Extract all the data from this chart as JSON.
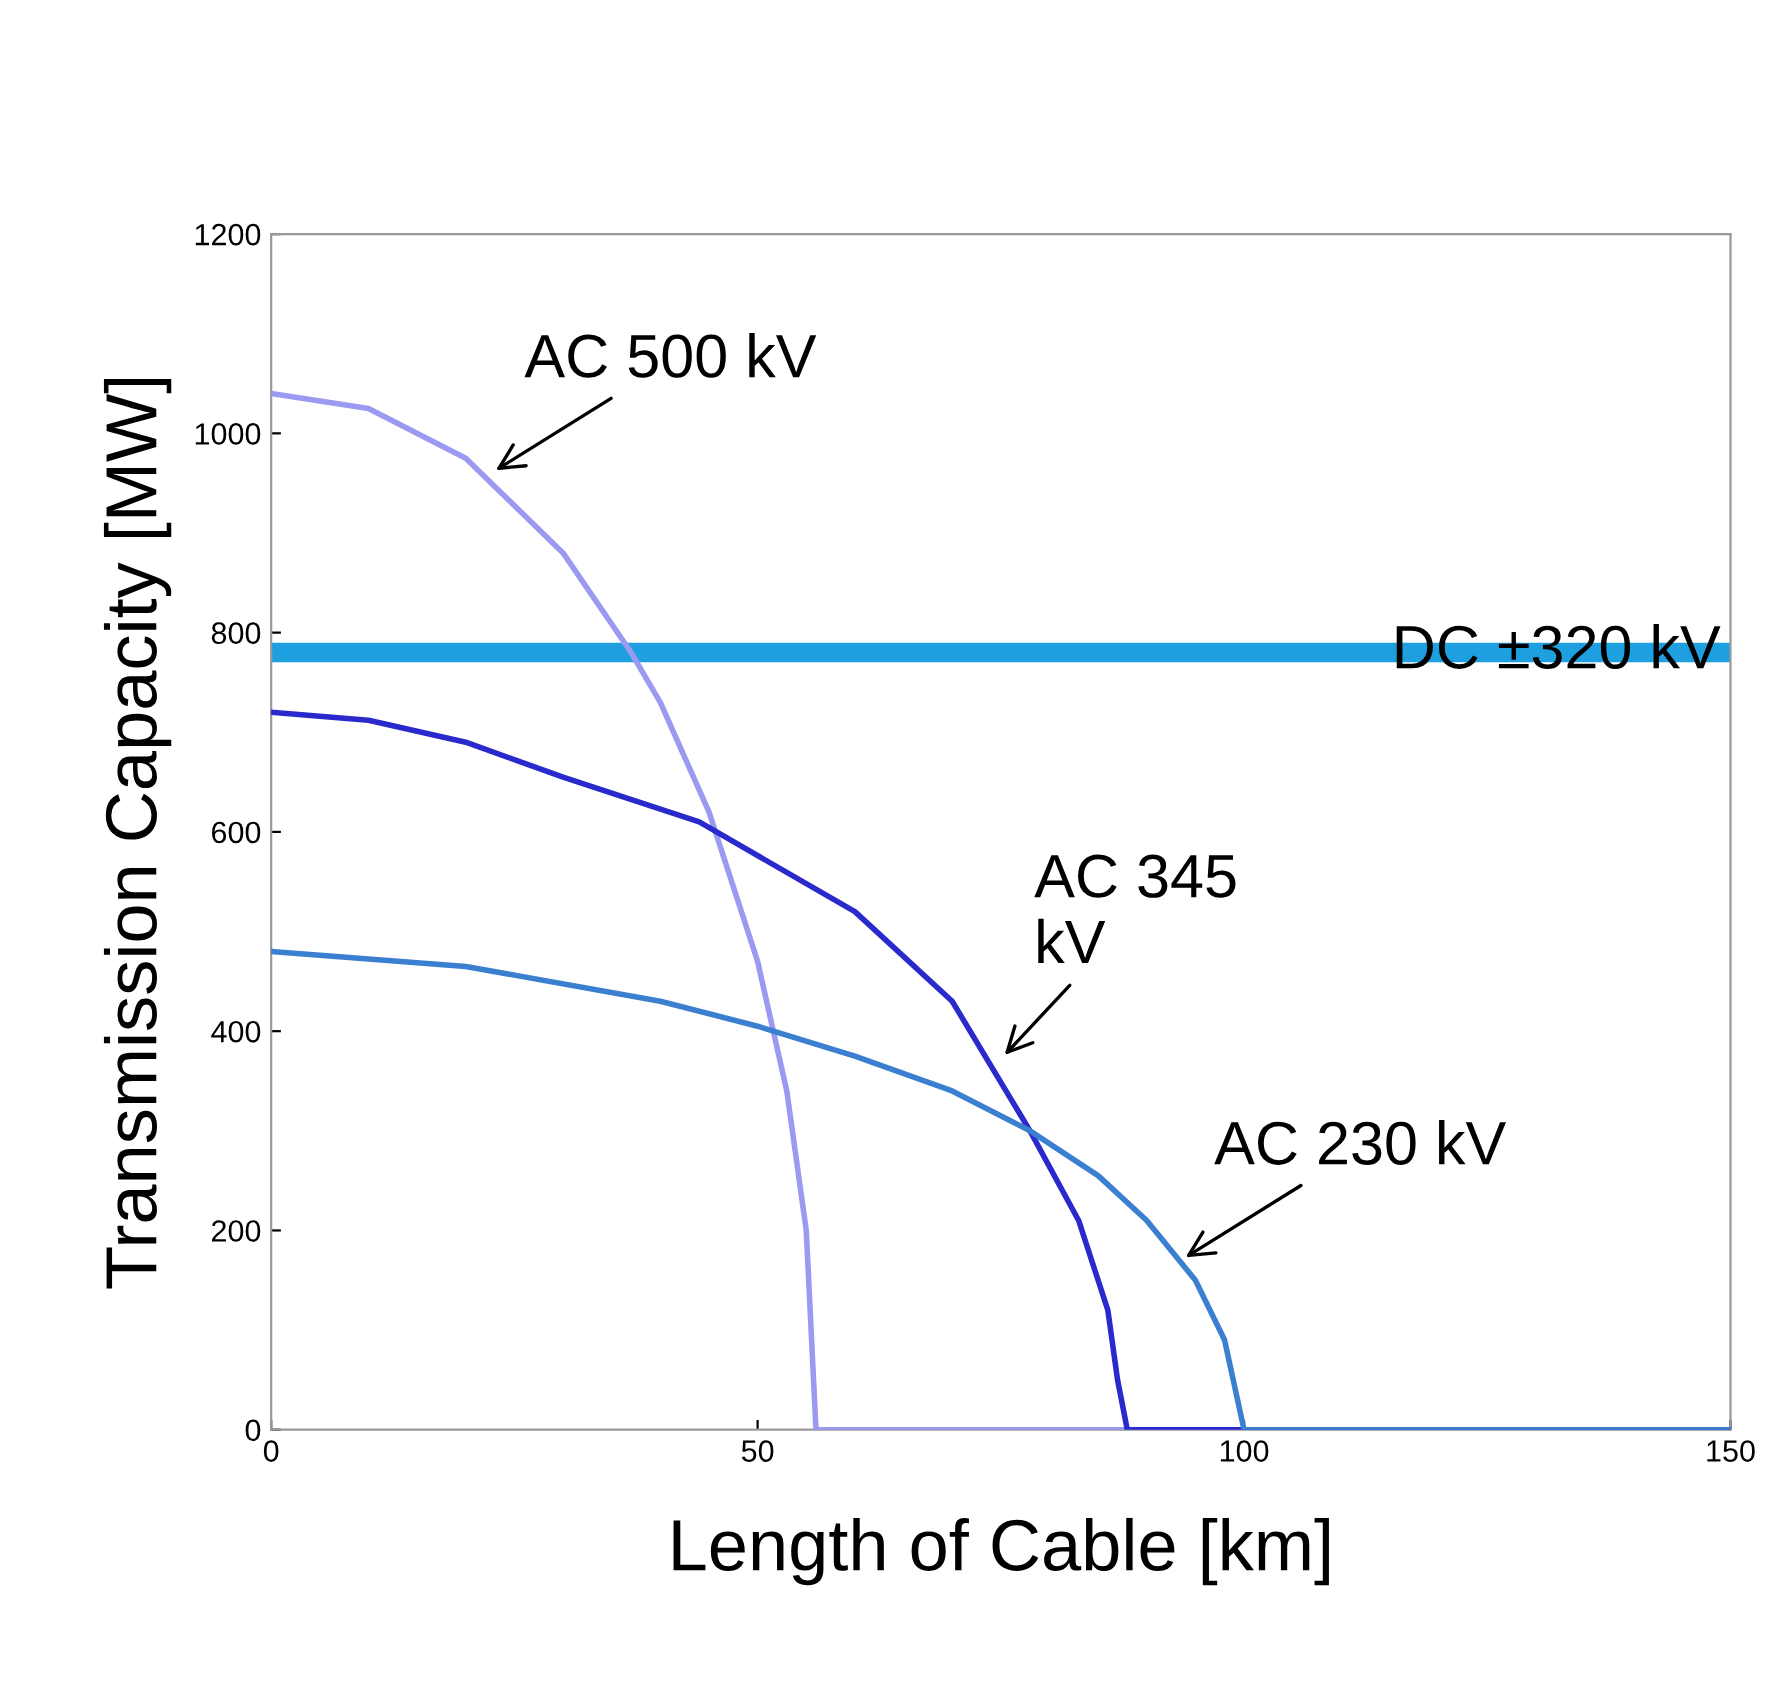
{
  "chart_data": {
    "type": "line",
    "xlabel": "Length of Cable [km]",
    "ylabel": "Transmission Capacity [MW]",
    "xlim": [
      0,
      150
    ],
    "ylim": [
      0,
      1200
    ],
    "xticks": [
      0,
      50,
      100,
      150
    ],
    "yticks": [
      0,
      200,
      400,
      600,
      800,
      1000,
      1200
    ],
    "grid": false,
    "legend": false,
    "series": [
      {
        "color": "#9a9af0",
        "x": [
          0,
          10,
          20,
          30,
          37,
          40,
          45,
          50,
          53,
          55,
          56,
          150
        ],
        "values": [
          1040,
          1025,
          975,
          880,
          780,
          730,
          620,
          470,
          340,
          200,
          0,
          0
        ]
      },
      {
        "color": "#2a2acc",
        "x": [
          0,
          10,
          20,
          30,
          44,
          60,
          70,
          78,
          83,
          86,
          87,
          88,
          150
        ],
        "values": [
          720,
          712,
          690,
          655,
          610,
          520,
          430,
          300,
          210,
          120,
          50,
          0,
          0
        ]
      },
      {
        "color": "#3a7fd0",
        "x": [
          0,
          20,
          40,
          50,
          60,
          70,
          78,
          85,
          90,
          95,
          98,
          100,
          150
        ],
        "values": [
          480,
          465,
          430,
          405,
          375,
          340,
          300,
          255,
          210,
          150,
          90,
          0,
          0
        ]
      }
    ],
    "ref_lines": [
      {
        "axis": "y",
        "value": 780,
        "label": "DC ±320 kV",
        "color": "#1ea0e0"
      }
    ],
    "annotations": [
      {
        "text": "AC 500 kV",
        "x": 22.6,
        "y": 960
      },
      {
        "text": "AC 345\nkV",
        "x": 75,
        "y": 372
      },
      {
        "text": "AC 230 kV",
        "x": 93.5,
        "y": 170
      }
    ]
  }
}
